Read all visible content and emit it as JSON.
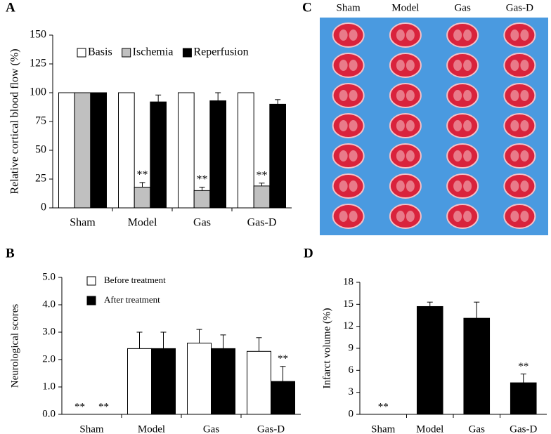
{
  "chart_data": [
    {
      "type": "bar",
      "panel": "A",
      "ylabel": "Relative  cortical blood  flow  (%)",
      "categories": [
        "Sham",
        "Model",
        "Gas",
        "Gas-D"
      ],
      "series": [
        {
          "name": "Basis",
          "color": "#ffffff",
          "values": [
            100,
            100,
            100,
            100
          ],
          "errors": [
            0,
            0,
            0,
            0
          ],
          "significance": [
            null,
            null,
            null,
            null
          ]
        },
        {
          "name": "Ischemia",
          "color": "#c0c0c0",
          "values": [
            100,
            18,
            15,
            19
          ],
          "errors": [
            0,
            4,
            3,
            2.5
          ],
          "significance": [
            null,
            "**",
            "**",
            "**"
          ]
        },
        {
          "name": "Reperfusion",
          "color": "#000000",
          "values": [
            100,
            92,
            93,
            90
          ],
          "errors": [
            0,
            6,
            7,
            4
          ],
          "significance": [
            null,
            null,
            null,
            null
          ]
        }
      ],
      "ylim": [
        0,
        150
      ],
      "yticks": [
        0,
        25,
        50,
        75,
        100,
        125,
        150
      ],
      "legend": "top"
    },
    {
      "type": "image",
      "panel": "C",
      "categories": [
        "Sham",
        "Model",
        "Gas",
        "Gas-D"
      ]
    },
    {
      "type": "bar",
      "panel": "B",
      "ylabel": "Neurological  scores",
      "categories": [
        "Sham",
        "Model",
        "Gas",
        "Gas-D"
      ],
      "series": [
        {
          "name": "Before treatment",
          "color": "#ffffff",
          "values": [
            0,
            2.4,
            2.6,
            2.3
          ],
          "errors": [
            0,
            0.6,
            0.5,
            0.5
          ],
          "significance": [
            "**",
            null,
            null,
            null
          ]
        },
        {
          "name": "After treatment",
          "color": "#000000",
          "values": [
            0,
            2.4,
            2.4,
            1.2
          ],
          "errors": [
            0,
            0.6,
            0.5,
            0.55
          ],
          "significance": [
            "**",
            null,
            null,
            "**"
          ]
        }
      ],
      "ylim": [
        0,
        5
      ],
      "yticks": [
        {
          "value": 0,
          "label": "0.0"
        },
        {
          "value": 1,
          "label": "1.0"
        },
        {
          "value": 2,
          "label": "2.0"
        },
        {
          "value": 3,
          "label": "3.0"
        },
        {
          "value": 4,
          "label": "4.0"
        },
        {
          "value": 5,
          "label": "5.0"
        }
      ],
      "legend": "upper left"
    },
    {
      "type": "bar",
      "panel": "D",
      "ylabel": "Infarct  volume  (%)",
      "categories": [
        "Sham",
        "Model",
        "Gas",
        "Gas-D"
      ],
      "series": [
        {
          "color": "#000000",
          "values": [
            0,
            14.7,
            13.1,
            4.3
          ],
          "errors": [
            0,
            0.6,
            2.2,
            1.2
          ],
          "significance": [
            "**",
            null,
            null,
            "**"
          ]
        }
      ],
      "ylim": [
        0,
        18
      ],
      "yticks": [
        0,
        3,
        6,
        9,
        12,
        15,
        18
      ]
    }
  ]
}
